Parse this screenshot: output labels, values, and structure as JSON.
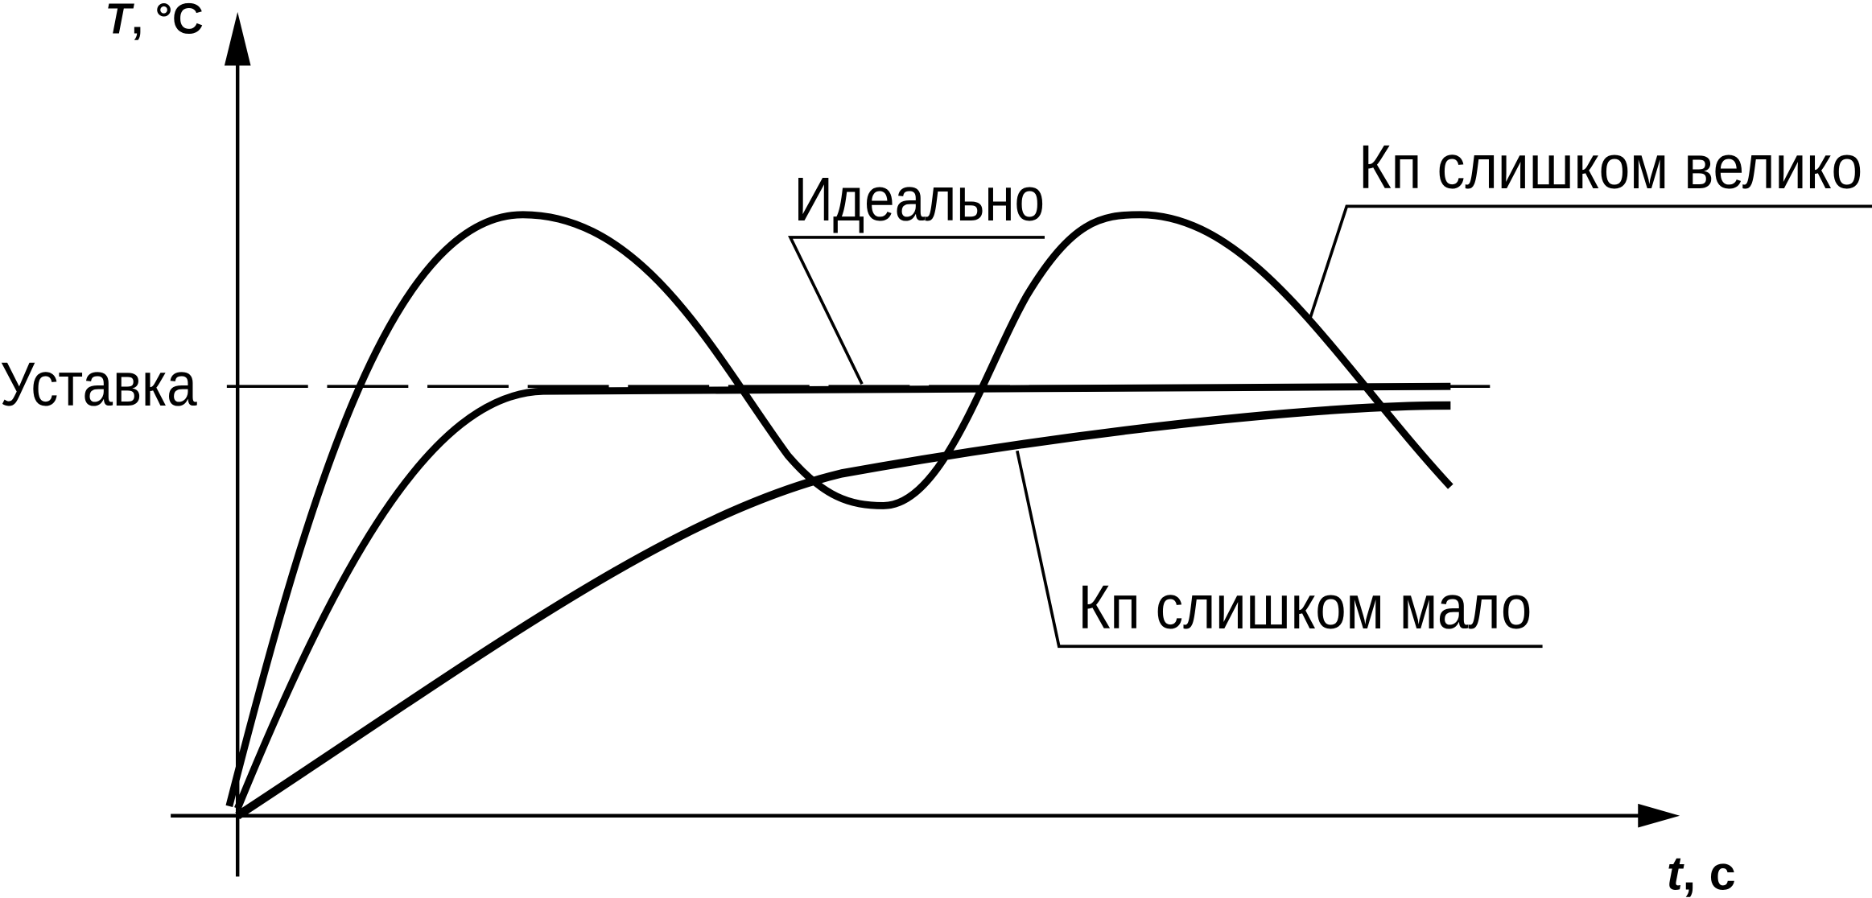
{
  "axes": {
    "y_label_symbol": "T",
    "y_label_unit": ", °C",
    "x_label_symbol": "t",
    "x_label_unit": ", c"
  },
  "setpoint_label": "Уставка",
  "curves": [
    {
      "id": "ideal",
      "label": "Идеально"
    },
    {
      "id": "kp-too-large",
      "label": "Кп слишком велико"
    },
    {
      "id": "kp-too-small",
      "label": "Кп слишком мало"
    }
  ],
  "colors": {
    "ink": "#000000",
    "background": "#ffffff"
  }
}
